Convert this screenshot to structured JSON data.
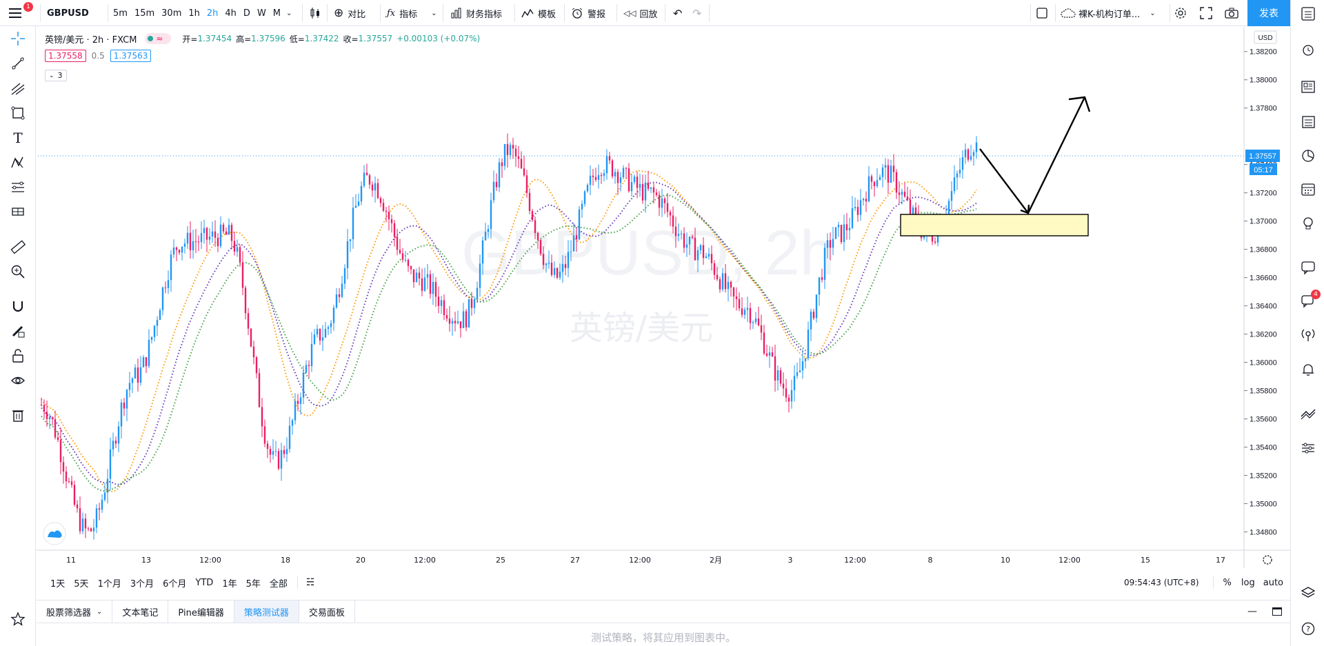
{
  "topbar": {
    "notification_count": "1",
    "symbol": "GBPUSD",
    "intervals": [
      "5m",
      "15m",
      "30m",
      "1h",
      "2h",
      "4h",
      "D",
      "W",
      "M"
    ],
    "active_interval": "2h",
    "compare_label": "对比",
    "indicators_label": "指标",
    "financials_label": "财务指标",
    "templates_label": "模板",
    "alert_label": "警报",
    "replay_label": "回放",
    "layout_name": "裸K-机构订单...",
    "publish_label": "发表"
  },
  "legend": {
    "title": "英镑/美元 · 2h · FXCM",
    "open_label": "开=",
    "open": "1.37454",
    "high_label": "高=",
    "high": "1.37596",
    "low_label": "低=",
    "low": "1.37422",
    "close_label": "收=",
    "close": "1.37557",
    "change": "+0.00103 (+0.07%)",
    "sell_price": "1.37558",
    "spread": "0.5",
    "buy_price": "1.37563",
    "collapse_count": "3"
  },
  "watermark": {
    "line1": "GBPUSD, 2h",
    "line2": "英镑/美元"
  },
  "price_axis": {
    "currency": "USD",
    "ticks": [
      "1.38200",
      "1.38000",
      "1.37800",
      "1.37400",
      "1.37200",
      "1.37000",
      "1.36800",
      "1.36600",
      "1.36400",
      "1.36200",
      "1.36000",
      "1.35800",
      "1.35600",
      "1.35400",
      "1.35200",
      "1.35000",
      "1.34800"
    ],
    "last_price": "1.37557",
    "countdown": "05:17"
  },
  "time_axis": {
    "ticks": [
      "11",
      "13",
      "12:00",
      "18",
      "20",
      "12:00",
      "25",
      "27",
      "12:00",
      "2月",
      "3",
      "12:00",
      "8",
      "10",
      "12:00",
      "15",
      "17"
    ]
  },
  "rangebar": {
    "ranges": [
      "1天",
      "5天",
      "1个月",
      "3个月",
      "6个月",
      "YTD",
      "1年",
      "5年",
      "全部"
    ],
    "clock": "09:54:43 (UTC+8)",
    "percent_label": "%",
    "log_label": "log",
    "auto_label": "auto"
  },
  "bottom_tabs": {
    "items": [
      "股票筛选器",
      "文本笔记",
      "Pine编辑器",
      "策略测试器",
      "交易面板"
    ],
    "active": "策略测试器",
    "message": "测试策略，将其应用到图表中。"
  },
  "right_panel": {
    "chat_badge": "4"
  },
  "colors": {
    "up": "#2196f3",
    "down": "#e91e63",
    "ma_orange": "#ff9800",
    "ma_purple": "#673ab7",
    "ma_green": "#43a047",
    "zone_fill": "#fff9c4",
    "accent": "#2196f3"
  },
  "chart_data": {
    "type": "candlestick",
    "symbol": "GBPUSD",
    "timeframe": "2h",
    "ylim": [
      1.347,
      1.3835
    ],
    "last_price": 1.37557,
    "anchors": [
      {
        "x": "11",
        "price": 1.357
      },
      {
        "x": "11 low",
        "price": 1.348
      },
      {
        "x": "13",
        "price": 1.359
      },
      {
        "x": "14",
        "price": 1.3685
      },
      {
        "x": "16",
        "price": 1.369
      },
      {
        "x": "18",
        "price": 1.353
      },
      {
        "x": "20",
        "price": 1.362
      },
      {
        "x": "22",
        "price": 1.373
      },
      {
        "x": "24",
        "price": 1.366
      },
      {
        "x": "26",
        "price": 1.363
      },
      {
        "x": "27",
        "price": 1.375
      },
      {
        "x": "28",
        "price": 1.366
      },
      {
        "x": "29",
        "price": 1.374
      },
      {
        "x": "2月",
        "price": 1.372
      },
      {
        "x": "2",
        "price": 1.368
      },
      {
        "x": "3",
        "price": 1.364
      },
      {
        "x": "4",
        "price": 1.358
      },
      {
        "x": "5",
        "price": 1.369
      },
      {
        "x": "8",
        "price": 1.3735
      },
      {
        "x": "8 dip",
        "price": 1.369
      },
      {
        "x": "9",
        "price": 1.37557
      }
    ],
    "annotations": {
      "zone": {
        "price_top": 1.3712,
        "price_bottom": 1.3696
      },
      "arrow_path_prices": [
        1.3765,
        1.3715,
        1.381
      ]
    }
  }
}
